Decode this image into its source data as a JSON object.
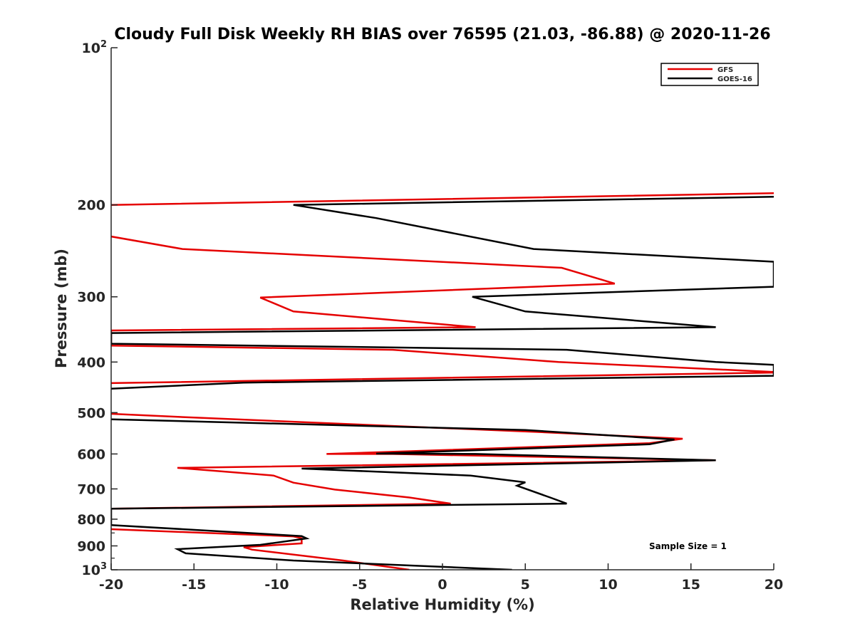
{
  "chart_data": {
    "type": "line",
    "title": "Cloudy Full Disk Weekly RH BIAS over 76595 (21.03, -86.88) @ 2020-11-26",
    "xlabel": "Relative Humidity (%)",
    "ylabel": "Pressure (mb)",
    "xlim": [
      -20,
      20
    ],
    "ylim": [
      100,
      1000
    ],
    "yscale": "log",
    "y_reversed": true,
    "x_ticks": [
      {
        "value": -20,
        "label": "-20"
      },
      {
        "value": -15,
        "label": "-15"
      },
      {
        "value": -10,
        "label": "-10"
      },
      {
        "value": -5,
        "label": "-5"
      },
      {
        "value": 0,
        "label": "0"
      },
      {
        "value": 5,
        "label": "5"
      },
      {
        "value": 10,
        "label": "10"
      },
      {
        "value": 15,
        "label": "15"
      },
      {
        "value": 20,
        "label": "20"
      }
    ],
    "y_ticks": [
      {
        "value": 100,
        "label": "10",
        "sup": "2"
      },
      {
        "value": 200,
        "label": "200"
      },
      {
        "value": 300,
        "label": "300"
      },
      {
        "value": 400,
        "label": "400"
      },
      {
        "value": 500,
        "label": "500"
      },
      {
        "value": 600,
        "label": "600"
      },
      {
        "value": 700,
        "label": "700"
      },
      {
        "value": 800,
        "label": "800"
      },
      {
        "value": 900,
        "label": "900"
      },
      {
        "value": 1000,
        "label": "10",
        "sup": "3"
      }
    ],
    "y_minor_ticks": [
      850,
      950
    ],
    "legend_position": "top-right",
    "annotation": "Sample Size = 1",
    "series": [
      {
        "name": "GFS",
        "color": "#e50000",
        "points": [
          [
            20,
            190
          ],
          [
            -20,
            200
          ],
          [
            -20,
            200
          ],
          [
            -21,
            227
          ],
          [
            -15.7,
            243
          ],
          [
            7.2,
            264
          ],
          [
            10.4,
            283
          ],
          [
            -11,
            301
          ],
          [
            -9,
            320
          ],
          [
            2,
            343
          ],
          [
            -20,
            348
          ],
          [
            -20,
            372
          ],
          [
            -3,
            379
          ],
          [
            7,
            400
          ],
          [
            20,
            418
          ],
          [
            20,
            419
          ],
          [
            -20,
            439
          ],
          [
            -21,
            501
          ],
          [
            -15,
            511
          ],
          [
            6,
            545
          ],
          [
            14.5,
            561
          ],
          [
            12.5,
            572
          ],
          [
            -7,
            600
          ],
          [
            -3,
            600
          ],
          [
            16.5,
            617
          ],
          [
            -16,
            638
          ],
          [
            -10.2,
            660
          ],
          [
            -9,
            681
          ],
          [
            -6.5,
            702
          ],
          [
            -2,
            727
          ],
          [
            0.5,
            747
          ],
          [
            -20,
            764
          ],
          [
            -21,
            834
          ],
          [
            -20.5,
            835
          ],
          [
            -9,
            863
          ],
          [
            -8.5,
            870
          ],
          [
            -8.5,
            890
          ],
          [
            -12,
            905
          ],
          [
            -11.5,
            915
          ],
          [
            -6,
            960
          ],
          [
            -2,
            1000
          ]
        ]
      },
      {
        "name": "GOES-16",
        "color": "#000000",
        "points": [
          [
            20,
            193
          ],
          [
            -9,
            200
          ],
          [
            -4,
            212
          ],
          [
            5.5,
            243
          ],
          [
            20,
            257
          ],
          [
            20,
            287
          ],
          [
            1.8,
            300
          ],
          [
            5,
            320
          ],
          [
            16.5,
            343
          ],
          [
            -20,
            352
          ],
          [
            -20,
            369
          ],
          [
            7.5,
            379
          ],
          [
            16.5,
            400
          ],
          [
            20,
            405
          ],
          [
            20,
            425
          ],
          [
            -12,
            438
          ],
          [
            -20,
            450
          ],
          [
            -21,
            514
          ],
          [
            5,
            540
          ],
          [
            14,
            563
          ],
          [
            12.5,
            575
          ],
          [
            -4,
            599
          ],
          [
            2,
            600
          ],
          [
            16.5,
            617
          ],
          [
            -8.5,
            640
          ],
          [
            1.7,
            660
          ],
          [
            5,
            680
          ],
          [
            4.5,
            690
          ],
          [
            6.5,
            727
          ],
          [
            7.5,
            747
          ],
          [
            -20,
            764
          ],
          [
            -20,
            821
          ],
          [
            -8.5,
            862
          ],
          [
            -8.2,
            871
          ],
          [
            -11,
            896
          ],
          [
            -16,
            913
          ],
          [
            -15.5,
            930
          ],
          [
            -9,
            960
          ],
          [
            4.2,
            1000
          ]
        ]
      }
    ]
  }
}
